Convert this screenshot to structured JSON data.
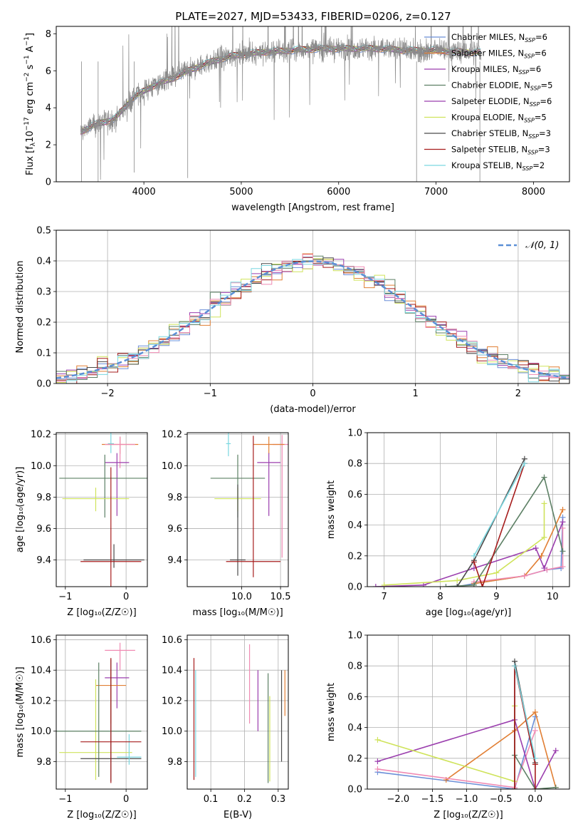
{
  "figure": {
    "title": "PLATE=2027, MJD=53433, FIBERID=0206, z=0.127",
    "model_colors": [
      "#6b8fd8",
      "#e17f34",
      "#9b3fae",
      "#cfe35b",
      "#5d8065",
      "#4a4a4a",
      "#a61c1c",
      "#f08ab3",
      "#7ad7e0",
      "#8a8a8a"
    ]
  },
  "chart_data": [
    {
      "id": "spectrum",
      "type": "line",
      "xlabel": "wavelength [Angstrom, rest frame]",
      "ylabel_parts": [
        "Flux [f",
        "λ",
        "10",
        "−17",
        " erg cm",
        "−2",
        " s",
        "−1",
        " A",
        "−1",
        "]"
      ],
      "xlim": [
        3100,
        8370
      ],
      "ylim": [
        0,
        8.4
      ],
      "xticks": [
        4000,
        5000,
        6000,
        7000,
        8000
      ],
      "yticks": [
        0,
        2,
        4,
        6,
        8
      ],
      "grid": false,
      "legend_position": "top-right",
      "legend": [
        {
          "name": "Chabrier MILES",
          "nssp": "6",
          "color": "#6b8fd8"
        },
        {
          "name": "Salpeter MILES",
          "nssp": "6",
          "color": "#e17f34"
        },
        {
          "name": "Kroupa MILES",
          "nssp": "6",
          "color": "#9b3fae"
        },
        {
          "name": "Chabrier ELODIE",
          "nssp": "5",
          "color": "#5d8065"
        },
        {
          "name": "Salpeter ELODIE",
          "nssp": "6",
          "color": "#9b3fae"
        },
        {
          "name": "Kroupa ELODIE",
          "nssp": "5",
          "color": "#cfe35b"
        },
        {
          "name": "Chabrier STELIB",
          "nssp": "3",
          "color": "#4a4a4a"
        },
        {
          "name": "Salpeter STELIB",
          "nssp": "3",
          "color": "#a61c1c"
        },
        {
          "name": "Kroupa STELIB",
          "nssp": "2",
          "color": "#7ad7e0"
        }
      ],
      "continuum": {
        "x": [
          3350,
          3500,
          3700,
          3900,
          4100,
          4300,
          4500,
          4700,
          4900,
          5200,
          5500,
          5800,
          6100,
          6400,
          6700,
          7000,
          7300,
          7450
        ],
        "y": [
          2.7,
          3.1,
          3.4,
          4.6,
          5.2,
          5.6,
          6.1,
          6.5,
          6.8,
          7.0,
          7.1,
          7.2,
          7.2,
          7.2,
          7.1,
          7.1,
          7.0,
          7.0
        ]
      },
      "model_x_range": [
        3350,
        7460
      ],
      "observed_x_range": [
        3350,
        7460
      ],
      "observed_line_color": "#8a8a8a"
    },
    {
      "id": "residuals",
      "type": "histogram",
      "xlabel": "(data-model)/error",
      "ylabel": "Normed distribution",
      "xlim": [
        -2.5,
        2.5
      ],
      "ylim": [
        0,
        0.5
      ],
      "xticks": [
        -2,
        -1,
        0,
        1,
        2
      ],
      "xtick_labels": [
        "−2",
        "−1",
        "0",
        "1",
        "2"
      ],
      "yticks": [
        0.0,
        0.1,
        0.2,
        0.3,
        0.4,
        0.5
      ],
      "ytick_labels": [
        "0.0",
        "0.1",
        "0.2",
        "0.3",
        "0.4",
        "0.5"
      ],
      "grid": true,
      "legend_position": "top-right",
      "curve_label": "𝒩(0, 1)",
      "curve_color": "#5b8fd6",
      "bin_width": 0.1
    },
    {
      "id": "age-vs-Z",
      "type": "errorbar",
      "xlabel": "Z [log₁₀(Z/Z☉)]",
      "ylabel": "age  [log₁₀(age/yr)]",
      "xlim": [
        -1.15,
        0.35
      ],
      "ylim": [
        9.23,
        10.21
      ],
      "xticks": [
        -1,
        0
      ],
      "xtick_labels": [
        "−1",
        "0"
      ],
      "yticks": [
        9.4,
        9.6,
        9.8,
        10.0,
        10.2
      ],
      "ytick_labels": [
        "9.4",
        "9.6",
        "9.8",
        "10.0",
        "10.2"
      ],
      "grid": true,
      "points": [
        {
          "x": -0.25,
          "xerr": 0.05,
          "y": 10.14,
          "yerr": [
            0.06,
            0.16
          ],
          "color": "#7ad7e0"
        },
        {
          "x": -0.1,
          "xerr": 0.3,
          "y": 10.135,
          "yerr": [
            0.06,
            0.05
          ],
          "color": "#e17f34"
        },
        {
          "x": -0.1,
          "xerr": 0.25,
          "y": 10.135,
          "yerr": [
            0.15,
            0.05
          ],
          "color": "#f08ab3"
        },
        {
          "x": -0.15,
          "xerr": 0.2,
          "y": 10.02,
          "yerr": [
            0.34,
            0.06
          ],
          "color": "#9b3fae"
        },
        {
          "x": -0.35,
          "xerr": 0.75,
          "y": 9.92,
          "yerr": [
            0.25,
            0.15
          ],
          "color": "#5d8065"
        },
        {
          "x": -0.5,
          "xerr": 0.55,
          "y": 9.79,
          "yerr": [
            0.08,
            0.07
          ],
          "color": "#cfe35b"
        },
        {
          "x": -0.2,
          "xerr": 0.5,
          "y": 9.4,
          "yerr": [
            0.05,
            0.1
          ],
          "color": "#4a4a4a"
        },
        {
          "x": -0.25,
          "xerr": 0.5,
          "y": 9.39,
          "yerr": [
            0.25,
            0.6
          ],
          "color": "#a61c1c"
        }
      ]
    },
    {
      "id": "age-vs-mass",
      "type": "errorbar",
      "xlabel": "mass [log₁₀(M/M☉)]",
      "xlim": [
        9.3,
        10.6
      ],
      "ylim": [
        9.23,
        10.21
      ],
      "xticks": [
        10.0,
        10.5
      ],
      "xtick_labels": [
        "10.0",
        "10.5"
      ],
      "yticks": [
        9.4,
        9.6,
        9.8,
        10.0,
        10.2
      ],
      "ytick_labels": [
        "9.4",
        "9.6",
        "9.8",
        "10.0",
        "10.2"
      ],
      "grid": true,
      "points": [
        {
          "x": 10.52,
          "xerr": 0.12,
          "y": 10.135,
          "yerr": [
            0.72,
            0.06
          ],
          "color": "#f08ab3"
        },
        {
          "x": 10.35,
          "xerr": 0.2,
          "y": 10.135,
          "yerr": [
            0.06,
            0.05
          ],
          "color": "#e17f34"
        },
        {
          "x": 10.35,
          "xerr": 0.15,
          "y": 10.02,
          "yerr": [
            0.34,
            0.06
          ],
          "color": "#9b3fae"
        },
        {
          "x": 9.83,
          "xerr": 0.03,
          "y": 10.14,
          "yerr": [
            0.08,
            0.16
          ],
          "color": "#7ad7e0"
        },
        {
          "x": 9.95,
          "xerr": 0.35,
          "y": 9.92,
          "yerr": [
            0.25,
            0.15
          ],
          "color": "#5d8065"
        },
        {
          "x": 9.95,
          "xerr": 0.3,
          "y": 9.79,
          "yerr": [
            0.08,
            0.07
          ],
          "color": "#cfe35b"
        },
        {
          "x": 9.95,
          "xerr": 0.1,
          "y": 9.4,
          "yerr": [
            0.1,
            0.48
          ],
          "color": "#4a4a4a"
        },
        {
          "x": 10.15,
          "xerr": 0.35,
          "y": 9.39,
          "yerr": [
            0.1,
            0.8
          ],
          "color": "#a61c1c"
        }
      ]
    },
    {
      "id": "weight-vs-age",
      "type": "line",
      "xlabel": "age  [log₁₀(age/yr)]",
      "ylabel": "mass weight",
      "xlim": [
        6.7,
        10.3
      ],
      "ylim": [
        0,
        1
      ],
      "xticks": [
        7,
        8,
        9,
        10
      ],
      "yticks": [
        0.0,
        0.2,
        0.4,
        0.6,
        0.8,
        1.0
      ],
      "ytick_labels": [
        "0.0",
        "0.2",
        "0.4",
        "0.6",
        "0.8",
        "1.0"
      ],
      "grid": true,
      "series": [
        {
          "color": "#6b8fd8",
          "x": [
            8.3,
            8.6,
            9.5,
            9.9,
            10.15,
            10.18
          ],
          "y": [
            0.0,
            0.02,
            0.07,
            0.11,
            0.12,
            0.45
          ]
        },
        {
          "color": "#e17f34",
          "x": [
            8.6,
            9.5,
            9.8,
            10.18
          ],
          "y": [
            0.02,
            0.07,
            0.2,
            0.5
          ]
        },
        {
          "color": "#f08ab3",
          "x": [
            8.6,
            9.5,
            9.9,
            10.18,
            10.18
          ],
          "y": [
            0.03,
            0.07,
            0.11,
            0.13,
            0.38
          ]
        },
        {
          "color": "#9b3fae",
          "x": [
            6.85,
            7.7,
            8.6,
            9.7,
            9.85,
            10.18
          ],
          "y": [
            0.0,
            0.01,
            0.12,
            0.25,
            0.12,
            0.42
          ]
        },
        {
          "color": "#cfe35b",
          "x": [
            7.0,
            8.3,
            9.0,
            9.85,
            9.85
          ],
          "y": [
            0.01,
            0.04,
            0.09,
            0.32,
            0.54
          ]
        },
        {
          "color": "#5d8065",
          "x": [
            8.1,
            8.6,
            9.85,
            10.18
          ],
          "y": [
            0.0,
            0.01,
            0.71,
            0.23
          ]
        },
        {
          "color": "#4a4a4a",
          "x": [
            8.3,
            8.6,
            9.5
          ],
          "y": [
            0.0,
            0.17,
            0.83
          ]
        },
        {
          "color": "#a61c1c",
          "x": [
            8.6,
            8.75,
            9.5
          ],
          "y": [
            0.16,
            0.0,
            0.8
          ]
        },
        {
          "color": "#7ad7e0",
          "x": [
            8.6,
            9.5
          ],
          "y": [
            0.2,
            0.8
          ]
        }
      ]
    },
    {
      "id": "mass-vs-Z",
      "type": "errorbar",
      "xlabel": "Z [log₁₀(Z/Z☉)]",
      "ylabel": "mass [log₁₀(M/M☉)]",
      "xlim": [
        -1.15,
        0.35
      ],
      "ylim": [
        9.62,
        10.63
      ],
      "xticks": [
        -1,
        0
      ],
      "xtick_labels": [
        "−1",
        "0"
      ],
      "yticks": [
        9.8,
        10.0,
        10.2,
        10.4,
        10.6
      ],
      "ytick_labels": [
        "9.8",
        "10.0",
        "10.2",
        "10.4",
        "10.6"
      ],
      "grid": true,
      "points": [
        {
          "x": -0.1,
          "xerr": 0.25,
          "y": 10.53,
          "yerr": [
            0.13,
            0.05
          ],
          "color": "#f08ab3"
        },
        {
          "x": -0.15,
          "xerr": 0.2,
          "y": 10.35,
          "yerr": [
            0.2,
            0.1
          ],
          "color": "#9b3fae"
        },
        {
          "x": -0.25,
          "xerr": 0.25,
          "y": 10.3,
          "yerr": [
            0.25,
            0.1
          ],
          "color": "#e17f34"
        },
        {
          "x": -0.5,
          "xerr": 0.6,
          "y": 9.86,
          "yerr": [
            0.18,
            0.48
          ],
          "color": "#cfe35b"
        },
        {
          "x": -0.45,
          "xerr": 0.7,
          "y": 10.0,
          "yerr": [
            0.3,
            0.45
          ],
          "color": "#5d8065"
        },
        {
          "x": -0.25,
          "xerr": 0.5,
          "y": 9.82,
          "yerr": [
            0.15,
            0.65
          ],
          "color": "#4a4a4a"
        },
        {
          "x": 0.05,
          "xerr": 0.2,
          "y": 9.83,
          "yerr": [
            0.05,
            0.15
          ],
          "color": "#7ad7e0"
        },
        {
          "x": -0.25,
          "xerr": 0.5,
          "y": 9.93,
          "yerr": [
            0.27,
            0.55
          ],
          "color": "#a61c1c"
        }
      ]
    },
    {
      "id": "mass-vs-ebv",
      "type": "errorbar",
      "xlabel": "E(B-V)",
      "xlim": [
        0.03,
        0.33
      ],
      "ylim": [
        9.62,
        10.63
      ],
      "xticks": [
        0.1,
        0.2,
        0.3
      ],
      "xtick_labels": [
        "0.1",
        "0.2",
        "0.3"
      ],
      "yticks": [
        9.8,
        10.0,
        10.2,
        10.4,
        10.6
      ],
      "ytick_labels": [
        "9.8",
        "10.0",
        "10.2",
        "10.4",
        "10.6"
      ],
      "grid": true,
      "points": [
        {
          "x": 0.05,
          "y": 10.08,
          "yerr": [
            0.4,
            0.4
          ],
          "color": "#a61c1c"
        },
        {
          "x": 0.055,
          "y": 10.05,
          "yerr": [
            0.35,
            0.35
          ],
          "color": "#7ad7e0"
        },
        {
          "x": 0.215,
          "y": 10.31,
          "yerr": [
            0.26,
            0.26
          ],
          "color": "#f08ab3"
        },
        {
          "x": 0.24,
          "y": 10.2,
          "yerr": [
            0.2,
            0.2
          ],
          "color": "#9b3fae"
        },
        {
          "x": 0.27,
          "y": 10.02,
          "yerr": [
            0.36,
            0.36
          ],
          "color": "#5d8065"
        },
        {
          "x": 0.275,
          "y": 9.95,
          "yerr": [
            0.28,
            0.28
          ],
          "color": "#cfe35b"
        },
        {
          "x": 0.31,
          "y": 10.1,
          "yerr": [
            0.3,
            0.3
          ],
          "color": "#4a4a4a"
        },
        {
          "x": 0.32,
          "y": 10.25,
          "yerr": [
            0.15,
            0.15
          ],
          "color": "#e17f34"
        }
      ]
    },
    {
      "id": "weight-vs-Z",
      "type": "line",
      "xlabel": "Z [log₁₀(Z/Z☉)]",
      "ylabel": "mass weight",
      "xlim": [
        -2.45,
        0.5
      ],
      "ylim": [
        0,
        1
      ],
      "xticks": [
        -2.0,
        -1.5,
        -1.0,
        -0.5,
        0.0
      ],
      "xtick_labels": [
        "−2.0",
        "−1.5",
        "−1.0",
        "−0.5",
        "0.0"
      ],
      "yticks": [
        0.0,
        0.2,
        0.4,
        0.6,
        0.8,
        1.0
      ],
      "ytick_labels": [
        "0.0",
        "0.2",
        "0.4",
        "0.6",
        "0.8",
        "1.0"
      ],
      "grid": true,
      "series": [
        {
          "color": "#6b8fd8",
          "x": [
            -2.3,
            -0.3,
            0.0
          ],
          "y": [
            0.11,
            0.0,
            0.47
          ]
        },
        {
          "color": "#e17f34",
          "x": [
            -1.3,
            -0.3,
            0.0,
            0.3
          ],
          "y": [
            0.06,
            0.38,
            0.5,
            0.01
          ]
        },
        {
          "color": "#f08ab3",
          "x": [
            -2.3,
            -0.3,
            0.0
          ],
          "y": [
            0.13,
            0.01,
            0.38
          ]
        },
        {
          "color": "#9b3fae",
          "x": [
            -2.3,
            -0.3,
            0.0,
            0.3
          ],
          "y": [
            0.18,
            0.45,
            0.0,
            0.25
          ]
        },
        {
          "color": "#cfe35b",
          "x": [
            -2.3,
            -0.3,
            -0.3
          ],
          "y": [
            0.32,
            0.05,
            0.54
          ]
        },
        {
          "color": "#5d8065",
          "x": [
            -0.3,
            0.0,
            0.3
          ],
          "y": [
            0.22,
            0.0,
            0.01
          ]
        },
        {
          "color": "#4a4a4a",
          "x": [
            -0.3,
            -0.3,
            0.0
          ],
          "y": [
            0.0,
            0.83,
            0.17
          ]
        },
        {
          "color": "#a61c1c",
          "x": [
            -0.3,
            -0.3,
            0.0,
            0.0
          ],
          "y": [
            0.0,
            0.8,
            0.16,
            0.0
          ]
        },
        {
          "color": "#7ad7e0",
          "x": [
            -0.3,
            0.0
          ],
          "y": [
            0.8,
            0.2
          ]
        }
      ]
    }
  ]
}
